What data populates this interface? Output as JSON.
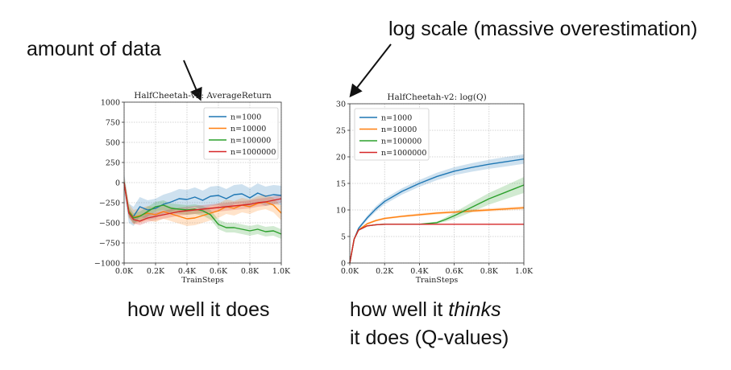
{
  "annotations": {
    "left": "amount of data",
    "right": "log scale (massive overestimation)"
  },
  "captions": {
    "left": "how well it does",
    "right_line1_pre": "how well it ",
    "right_line1_em": "thinks",
    "right_line2": "it does (Q-values)"
  },
  "colors": {
    "n1000": "#1f77b4",
    "n10000": "#ff7f0e",
    "n100000": "#2ca02c",
    "n1000000": "#d62728"
  },
  "chart_data": [
    {
      "type": "line",
      "title": "HalfCheetah-v2: AverageReturn",
      "xlabel": "TrainSteps",
      "ylabel": "",
      "xlim": [
        0,
        1000
      ],
      "ylim": [
        -1000,
        1000
      ],
      "xticks": [
        0,
        200,
        400,
        600,
        800,
        1000
      ],
      "xtick_labels": [
        "0.0K",
        "0.2K",
        "0.4K",
        "0.6K",
        "0.8K",
        "1.0K"
      ],
      "yticks": [
        -1000,
        -750,
        -500,
        -250,
        0,
        250,
        500,
        750,
        1000
      ],
      "ytick_labels": [
        "−1000",
        "−750",
        "−500",
        "−250",
        "0",
        "250",
        "500",
        "750",
        "1000"
      ],
      "grid": true,
      "legend": "top-right",
      "series": [
        {
          "name": "n=1000",
          "x": [
            0,
            30,
            60,
            100,
            150,
            200,
            250,
            300,
            350,
            400,
            450,
            500,
            550,
            600,
            650,
            700,
            750,
            800,
            850,
            900,
            950,
            1000
          ],
          "y": [
            0,
            -380,
            -420,
            -300,
            -340,
            -320,
            -270,
            -240,
            -200,
            -210,
            -180,
            -220,
            -170,
            -160,
            -200,
            -150,
            -140,
            -190,
            -130,
            -170,
            -150,
            -160
          ],
          "band": 120
        },
        {
          "name": "n=10000",
          "x": [
            0,
            30,
            60,
            100,
            150,
            200,
            250,
            300,
            350,
            400,
            450,
            500,
            550,
            600,
            650,
            700,
            750,
            800,
            850,
            900,
            950,
            1000
          ],
          "y": [
            0,
            -350,
            -430,
            -410,
            -380,
            -400,
            -360,
            -390,
            -420,
            -450,
            -440,
            -410,
            -380,
            -350,
            -300,
            -320,
            -280,
            -300,
            -260,
            -240,
            -280,
            -380
          ],
          "band": 90
        },
        {
          "name": "n=100000",
          "x": [
            0,
            30,
            60,
            100,
            150,
            200,
            250,
            300,
            350,
            400,
            450,
            500,
            550,
            600,
            650,
            700,
            750,
            800,
            850,
            900,
            950,
            1000
          ],
          "y": [
            0,
            -360,
            -440,
            -420,
            -360,
            -300,
            -280,
            -320,
            -330,
            -340,
            -330,
            -350,
            -400,
            -520,
            -560,
            -560,
            -580,
            -600,
            -580,
            -610,
            -600,
            -640
          ],
          "band": 60
        },
        {
          "name": "n=1000000",
          "x": [
            0,
            30,
            60,
            100,
            150,
            200,
            250,
            300,
            350,
            400,
            450,
            500,
            550,
            600,
            650,
            700,
            750,
            800,
            850,
            900,
            950,
            1000
          ],
          "y": [
            0,
            -380,
            -460,
            -480,
            -440,
            -420,
            -400,
            -380,
            -360,
            -350,
            -340,
            -330,
            -320,
            -310,
            -300,
            -290,
            -280,
            -270,
            -250,
            -240,
            -220,
            -200
          ],
          "band": 50
        }
      ]
    },
    {
      "type": "line",
      "title": "HalfCheetah-v2: log(Q)",
      "xlabel": "TrainSteps",
      "ylabel": "",
      "xlim": [
        0,
        1000
      ],
      "ylim": [
        0,
        30
      ],
      "xticks": [
        0,
        200,
        400,
        600,
        800,
        1000
      ],
      "xtick_labels": [
        "0.0K",
        "0.2K",
        "0.4K",
        "0.6K",
        "0.8K",
        "1.0K"
      ],
      "yticks": [
        0,
        5,
        10,
        15,
        20,
        25,
        30
      ],
      "ytick_labels": [
        "0",
        "5",
        "10",
        "15",
        "20",
        "25",
        "30"
      ],
      "grid": true,
      "legend": "top-left",
      "series": [
        {
          "name": "n=1000",
          "x": [
            0,
            25,
            50,
            100,
            150,
            200,
            300,
            400,
            500,
            600,
            700,
            800,
            900,
            1000
          ],
          "y": [
            0,
            4.5,
            6.5,
            8.5,
            10.2,
            11.6,
            13.5,
            15,
            16.3,
            17.3,
            18,
            18.6,
            19.1,
            19.6
          ],
          "band": [
            0,
            0.2,
            0.3,
            0.4,
            0.5,
            0.55,
            0.6,
            0.65,
            0.7,
            0.75,
            0.8,
            0.85,
            0.9,
            0.9
          ]
        },
        {
          "name": "n=10000",
          "x": [
            0,
            25,
            50,
            100,
            150,
            200,
            300,
            400,
            500,
            600,
            700,
            800,
            900,
            1000
          ],
          "y": [
            0,
            4.5,
            6.2,
            7.4,
            8,
            8.4,
            8.8,
            9.1,
            9.4,
            9.6,
            9.8,
            10,
            10.2,
            10.4
          ],
          "band": [
            0,
            0.1,
            0.15,
            0.2,
            0.2,
            0.2,
            0.2,
            0.25,
            0.25,
            0.25,
            0.3,
            0.3,
            0.3,
            0.3
          ]
        },
        {
          "name": "n=100000",
          "x": [
            0,
            25,
            50,
            100,
            150,
            200,
            300,
            400,
            500,
            550,
            600,
            700,
            800,
            900,
            1000
          ],
          "y": [
            0,
            4.5,
            6.2,
            7,
            7.2,
            7.3,
            7.3,
            7.3,
            7.6,
            8.2,
            8.9,
            10.5,
            12.1,
            13.4,
            14.7
          ],
          "band": [
            0,
            0.1,
            0.1,
            0.1,
            0.1,
            0.1,
            0.1,
            0.1,
            0.2,
            0.4,
            0.6,
            0.9,
            1.1,
            1.3,
            1.5
          ]
        },
        {
          "name": "n=1000000",
          "x": [
            0,
            25,
            50,
            100,
            150,
            200,
            300,
            400,
            500,
            600,
            700,
            800,
            900,
            1000
          ],
          "y": [
            0,
            4.5,
            6.2,
            7,
            7.2,
            7.3,
            7.3,
            7.3,
            7.3,
            7.3,
            7.3,
            7.3,
            7.3,
            7.3
          ],
          "band": [
            0,
            0.05,
            0.05,
            0.05,
            0.05,
            0.05,
            0.05,
            0.05,
            0.05,
            0.05,
            0.05,
            0.05,
            0.05,
            0.05
          ]
        }
      ]
    }
  ]
}
